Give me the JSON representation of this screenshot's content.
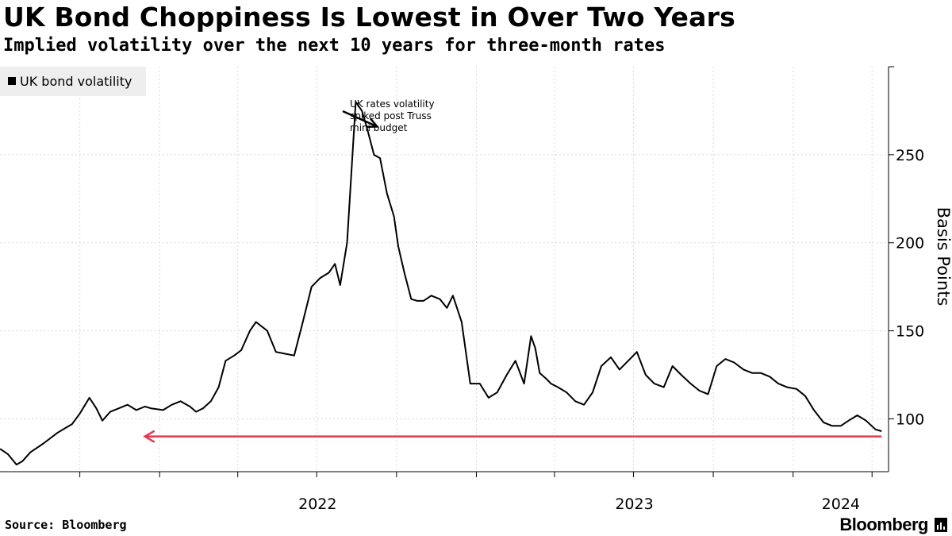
{
  "title": "UK Bond Choppiness Is Lowest in Over Two Years",
  "subtitle": "Implied volatility over the next 10 years for three-month rates",
  "source": "Source: Bloomberg",
  "brand": "Bloomberg",
  "colors": {
    "series": "#000000",
    "arrow": "#e8364d",
    "grid": "#d9d9d9",
    "legend_bg": "#eeeeee"
  },
  "chart_data": {
    "type": "line",
    "title": "UK Bond Choppiness Is Lowest in Over Two Years",
    "subtitle": "Implied volatility over the next 10 years for three-month rates",
    "ylabel": "Basis Points",
    "y_axis_position": "right",
    "ylim": [
      70,
      300
    ],
    "xlim": [
      "2021-07-01",
      "2024-04-20"
    ],
    "y_ticks": [
      100,
      150,
      200,
      250
    ],
    "x_tick_labels": [
      "2022",
      "2023",
      "2024"
    ],
    "grid": true,
    "legend_position": "top-left",
    "series": [
      {
        "name": "UK bond volatility",
        "x": [
          "2021-07-01",
          "2021-07-10",
          "2021-07-20",
          "2021-07-27",
          "2021-08-05",
          "2021-08-20",
          "2021-09-05",
          "2021-09-15",
          "2021-09-22",
          "2021-10-01",
          "2021-10-12",
          "2021-10-20",
          "2021-10-27",
          "2021-11-05",
          "2021-11-15",
          "2021-11-25",
          "2021-12-05",
          "2021-12-15",
          "2021-12-22",
          "2022-01-05",
          "2022-01-15",
          "2022-01-25",
          "2022-02-05",
          "2022-02-12",
          "2022-02-20",
          "2022-03-01",
          "2022-03-10",
          "2022-03-18",
          "2022-03-28",
          "2022-04-05",
          "2022-04-15",
          "2022-04-22",
          "2022-05-05",
          "2022-05-15",
          "2022-05-25",
          "2022-06-05",
          "2022-06-15",
          "2022-06-25",
          "2022-07-05",
          "2022-07-15",
          "2022-07-22",
          "2022-07-28",
          "2022-08-05",
          "2022-08-15",
          "2022-08-22",
          "2022-08-28",
          "2022-09-05",
          "2022-09-12",
          "2022-09-20",
          "2022-09-28",
          "2022-10-03",
          "2022-10-10",
          "2022-10-18",
          "2022-10-25",
          "2022-11-01",
          "2022-11-10",
          "2022-11-20",
          "2022-11-28",
          "2022-12-05",
          "2022-12-15",
          "2022-12-25",
          "2023-01-05",
          "2023-01-15",
          "2023-01-25",
          "2023-02-05",
          "2023-02-15",
          "2023-02-25",
          "2023-03-05",
          "2023-03-10",
          "2023-03-15",
          "2023-03-22",
          "2023-03-28",
          "2023-04-05",
          "2023-04-15",
          "2023-04-25",
          "2023-05-05",
          "2023-05-15",
          "2023-05-25",
          "2023-06-05",
          "2023-06-15",
          "2023-06-25",
          "2023-07-05",
          "2023-07-15",
          "2023-07-25",
          "2023-08-05",
          "2023-08-15",
          "2023-08-25",
          "2023-09-05",
          "2023-09-15",
          "2023-09-25",
          "2023-10-05",
          "2023-10-15",
          "2023-10-25",
          "2023-11-05",
          "2023-11-15",
          "2023-11-25",
          "2023-12-05",
          "2023-12-15",
          "2023-12-25",
          "2024-01-05",
          "2024-01-15",
          "2024-01-25",
          "2024-02-05",
          "2024-02-15",
          "2024-02-25",
          "2024-03-05",
          "2024-03-15",
          "2024-03-25",
          "2024-04-05",
          "2024-04-12"
        ],
        "values": [
          83,
          80,
          74,
          76,
          81,
          86,
          92,
          95,
          97,
          103,
          112,
          106,
          99,
          104,
          106,
          108,
          105,
          107,
          106,
          105,
          108,
          110,
          107,
          104,
          106,
          110,
          118,
          133,
          136,
          139,
          150,
          155,
          150,
          138,
          137,
          136,
          155,
          175,
          180,
          183,
          188,
          176,
          200,
          280,
          275,
          265,
          250,
          248,
          228,
          215,
          198,
          183,
          168,
          167,
          167,
          170,
          168,
          163,
          170,
          155,
          120,
          120,
          112,
          115,
          125,
          133,
          120,
          147,
          140,
          126,
          123,
          120,
          118,
          115,
          110,
          108,
          115,
          130,
          135,
          128,
          133,
          138,
          125,
          120,
          118,
          130,
          125,
          120,
          116,
          114,
          130,
          134,
          132,
          128,
          126,
          126,
          124,
          120,
          118,
          117,
          113,
          105,
          98,
          96,
          96,
          99,
          102,
          99,
          94,
          93
        ]
      }
    ],
    "annotations": [
      {
        "text": [
          "UK rates volatility",
          "spiked post Truss",
          "mini budget"
        ],
        "points_to": {
          "x": "2022-09-05",
          "y": 266
        }
      },
      {
        "type": "arrow",
        "y": 90,
        "x_from": "2024-04-12",
        "x_to": "2021-12-15"
      }
    ]
  }
}
